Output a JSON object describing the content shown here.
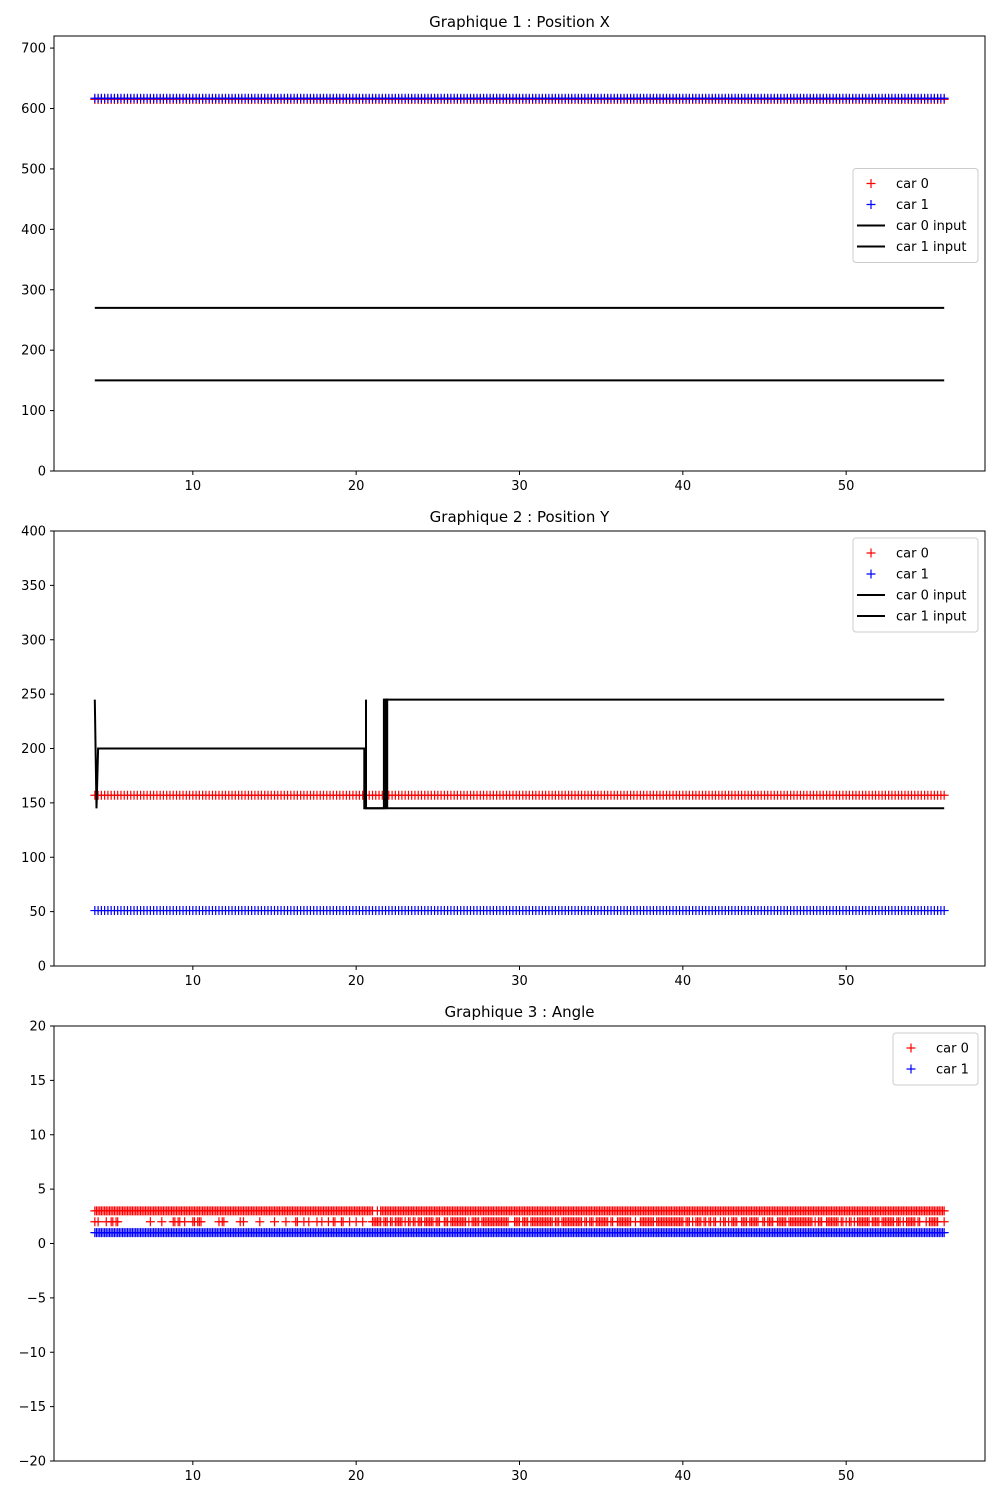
{
  "chart_data": [
    {
      "type": "line",
      "title": "Graphique 1 : Position X",
      "xlabel": "",
      "ylabel": "",
      "xlim": [
        1.5,
        58.5
      ],
      "ylim": [
        0,
        720
      ],
      "xticks": [
        10,
        20,
        30,
        40,
        50
      ],
      "yticks": [
        0,
        100,
        200,
        300,
        400,
        500,
        600,
        700
      ],
      "legend_position": "center-right",
      "series": [
        {
          "name": "car 0",
          "marker": "+",
          "color": "#ff0000",
          "x_range": [
            4,
            56
          ],
          "points_y": [
            [
              4,
              56,
              615
            ]
          ]
        },
        {
          "name": "car 1",
          "marker": "+",
          "color": "#0000ff",
          "x_range": [
            4,
            56
          ],
          "points_y": [
            [
              4,
              56,
              617
            ]
          ]
        },
        {
          "name": "car 0 input",
          "line": true,
          "color": "#000000",
          "path": [
            [
              4,
              270
            ],
            [
              56,
              270
            ]
          ]
        },
        {
          "name": "car 1 input",
          "line": true,
          "color": "#000000",
          "path": [
            [
              4,
              150
            ],
            [
              56,
              150
            ]
          ]
        }
      ]
    },
    {
      "type": "line",
      "title": "Graphique 2 : Position Y",
      "xlabel": "",
      "ylabel": "",
      "xlim": [
        1.5,
        58.5
      ],
      "ylim": [
        0,
        400
      ],
      "xticks": [
        10,
        20,
        30,
        40,
        50
      ],
      "yticks": [
        0,
        50,
        100,
        150,
        200,
        250,
        300,
        350,
        400
      ],
      "legend_position": "top-right",
      "series": [
        {
          "name": "car 0",
          "marker": "+",
          "color": "#ff0000",
          "x_range": [
            4,
            56
          ],
          "points_y": [
            [
              4,
              56,
              157
            ]
          ]
        },
        {
          "name": "car 1",
          "marker": "+",
          "color": "#0000ff",
          "x_range": [
            4,
            56
          ],
          "points_y": [
            [
              4,
              56,
              51
            ]
          ]
        },
        {
          "name": "car 0 input",
          "line": true,
          "color": "#000000",
          "path": [
            [
              4,
              245
            ],
            [
              4.1,
              145
            ],
            [
              4.2,
              200
            ],
            [
              20.5,
              200
            ],
            [
              20.5,
              145
            ],
            [
              21.8,
              145
            ],
            [
              21.8,
              245
            ],
            [
              56,
              245
            ]
          ]
        },
        {
          "name": "car 1 input",
          "line": true,
          "color": "#000000",
          "path": [
            [
              20.6,
              245
            ],
            [
              20.6,
              145
            ],
            [
              21.7,
              145
            ],
            [
              21.7,
              245
            ],
            [
              21.9,
              245
            ],
            [
              21.9,
              145
            ],
            [
              56,
              145
            ]
          ]
        }
      ]
    },
    {
      "type": "scatter",
      "title": "Graphique 3 : Angle",
      "xlabel": "",
      "ylabel": "",
      "xlim": [
        1.5,
        58.5
      ],
      "ylim": [
        -20,
        20
      ],
      "xticks": [
        10,
        20,
        30,
        40,
        50
      ],
      "yticks": [
        -20,
        -15,
        -10,
        -5,
        0,
        5,
        10,
        15,
        20
      ],
      "legend_position": "top-right",
      "series": [
        {
          "name": "car 0",
          "marker": "+",
          "color": "#ff0000",
          "levels": [
            3,
            2
          ],
          "x_range": [
            4,
            56
          ]
        },
        {
          "name": "car 1",
          "marker": "+",
          "color": "#0000ff",
          "levels": [
            1
          ],
          "x_range": [
            4,
            56
          ]
        }
      ]
    }
  ]
}
